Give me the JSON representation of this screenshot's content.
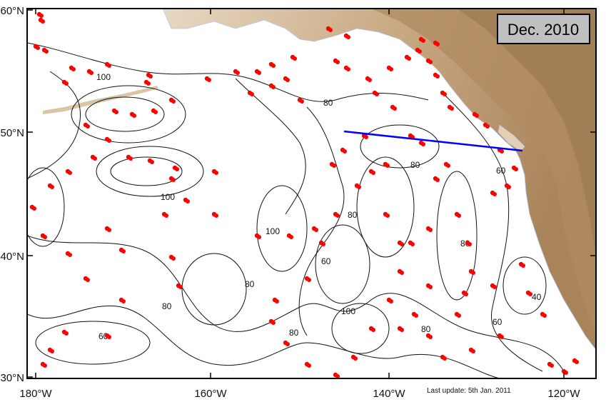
{
  "map": {
    "date_label": "Dec. 2010",
    "update_note": "Last update: 5th Jan. 2011",
    "latitude_labels": [
      "60°N",
      "50°N",
      "40°N",
      "30°N"
    ],
    "longitude_labels": [
      "180°W",
      "160°W",
      "140°W",
      "120°W"
    ],
    "contour_labels": [
      "100",
      "80",
      "60",
      "40"
    ],
    "colors": {
      "ocean": "#ffffff",
      "land_light": "#e2cfb6",
      "land_mid": "#c9aa84",
      "land_dark": "#a9835a",
      "contour": "#111111",
      "float_marker": "#ff0000",
      "section_line": "#0000ff",
      "date_box": "#c0c0c0"
    }
  }
}
